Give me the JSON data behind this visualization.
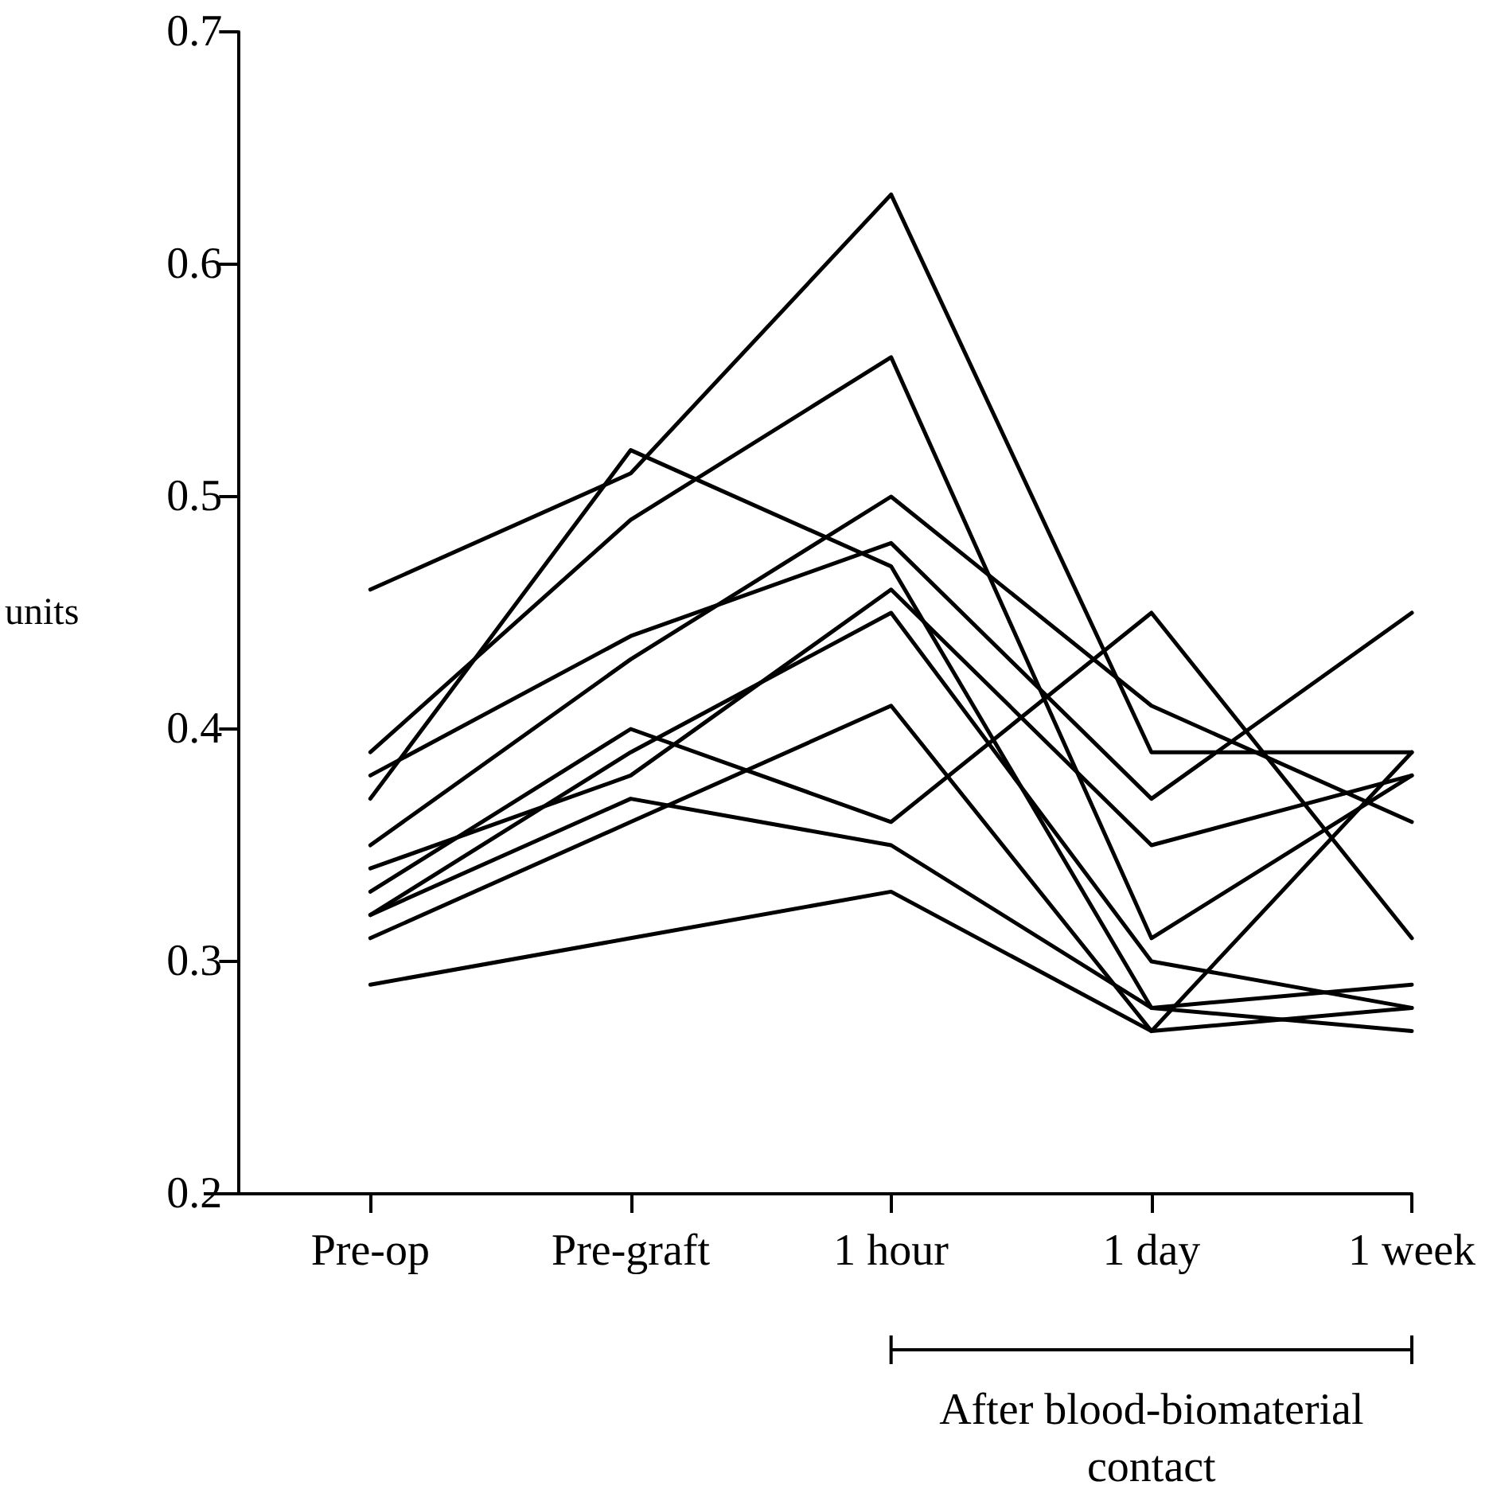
{
  "chart_data": {
    "type": "line",
    "ylabel": "units",
    "categories": [
      "Pre-op",
      "Pre-graft",
      "1 hour",
      "1 day",
      "1 week"
    ],
    "series": [
      {
        "color": "#000000",
        "values": [
          0.46,
          0.51,
          0.63,
          0.39,
          0.39
        ]
      },
      {
        "color": "#000000",
        "values": [
          0.39,
          0.49,
          0.56,
          0.31,
          0.38
        ]
      },
      {
        "color": "#000000",
        "values": [
          0.35,
          0.43,
          0.5,
          0.41,
          0.36
        ]
      },
      {
        "color": "#000000",
        "values": [
          0.38,
          0.44,
          0.48,
          0.37,
          0.45
        ]
      },
      {
        "color": "#000000",
        "values": [
          0.37,
          0.52,
          0.47,
          0.28,
          0.29
        ]
      },
      {
        "color": "#000000",
        "values": [
          0.33,
          0.4,
          0.36,
          0.45,
          0.31
        ]
      },
      {
        "color": "#000000",
        "values": [
          0.34,
          0.38,
          0.46,
          0.35,
          0.38
        ]
      },
      {
        "color": "#000000",
        "values": [
          0.32,
          0.39,
          0.45,
          0.3,
          0.28
        ]
      },
      {
        "color": "#000000",
        "values": [
          0.31,
          0.36,
          0.41,
          0.27,
          0.39
        ]
      },
      {
        "color": "#000000",
        "values": [
          0.32,
          0.37,
          0.35,
          0.28,
          0.27
        ]
      },
      {
        "color": "#000000",
        "values": [
          0.29,
          0.31,
          0.33,
          0.27,
          0.28
        ]
      }
    ],
    "annotations": [
      {
        "text": "After blood-biomaterial contact"
      }
    ],
    "ylim": [
      0.2,
      0.7
    ],
    "yticks": [
      0.2,
      0.3,
      0.4,
      0.5,
      0.6,
      0.7
    ],
    "grid": false,
    "marker": "none",
    "line_style": "solid"
  }
}
